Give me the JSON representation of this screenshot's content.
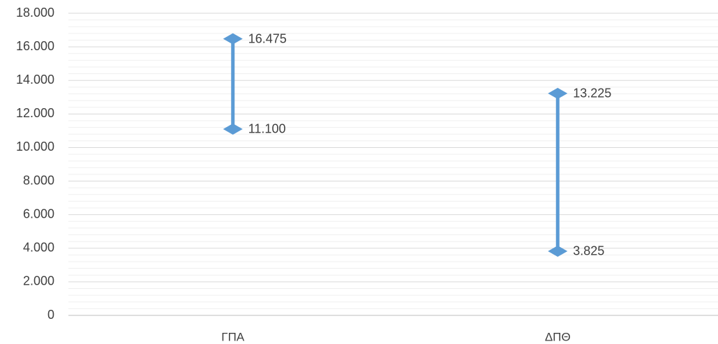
{
  "chart_data": {
    "type": "range",
    "categories": [
      "ΓΠΑ",
      "ΔΠΘ"
    ],
    "series": [
      {
        "color": "#5b9bd5",
        "values": [
          11100,
          3825
        ],
        "value_labels": [
          "11.100",
          "3.825"
        ]
      },
      {
        "color": "#5b9bd5",
        "values": [
          16475,
          13225
        ],
        "value_labels": [
          "16.475",
          "13.225"
        ]
      }
    ],
    "ylim": [
      0,
      18000
    ],
    "yticks": [
      0,
      {
        "value": 2000,
        "label": "2.000"
      },
      {
        "value": 4000,
        "label": "4.000"
      },
      {
        "value": 6000,
        "label": "6.000"
      },
      {
        "value": 8000,
        "label": "8.000"
      },
      {
        "value": 10000,
        "label": "10.000"
      },
      {
        "value": 12000,
        "label": "12.000"
      },
      {
        "value": 14000,
        "label": "14.000"
      },
      {
        "value": 16000,
        "label": "16.000"
      },
      {
        "value": 18000,
        "label": "18.000"
      }
    ],
    "grid": true,
    "minor_grid_divisions": 5
  }
}
